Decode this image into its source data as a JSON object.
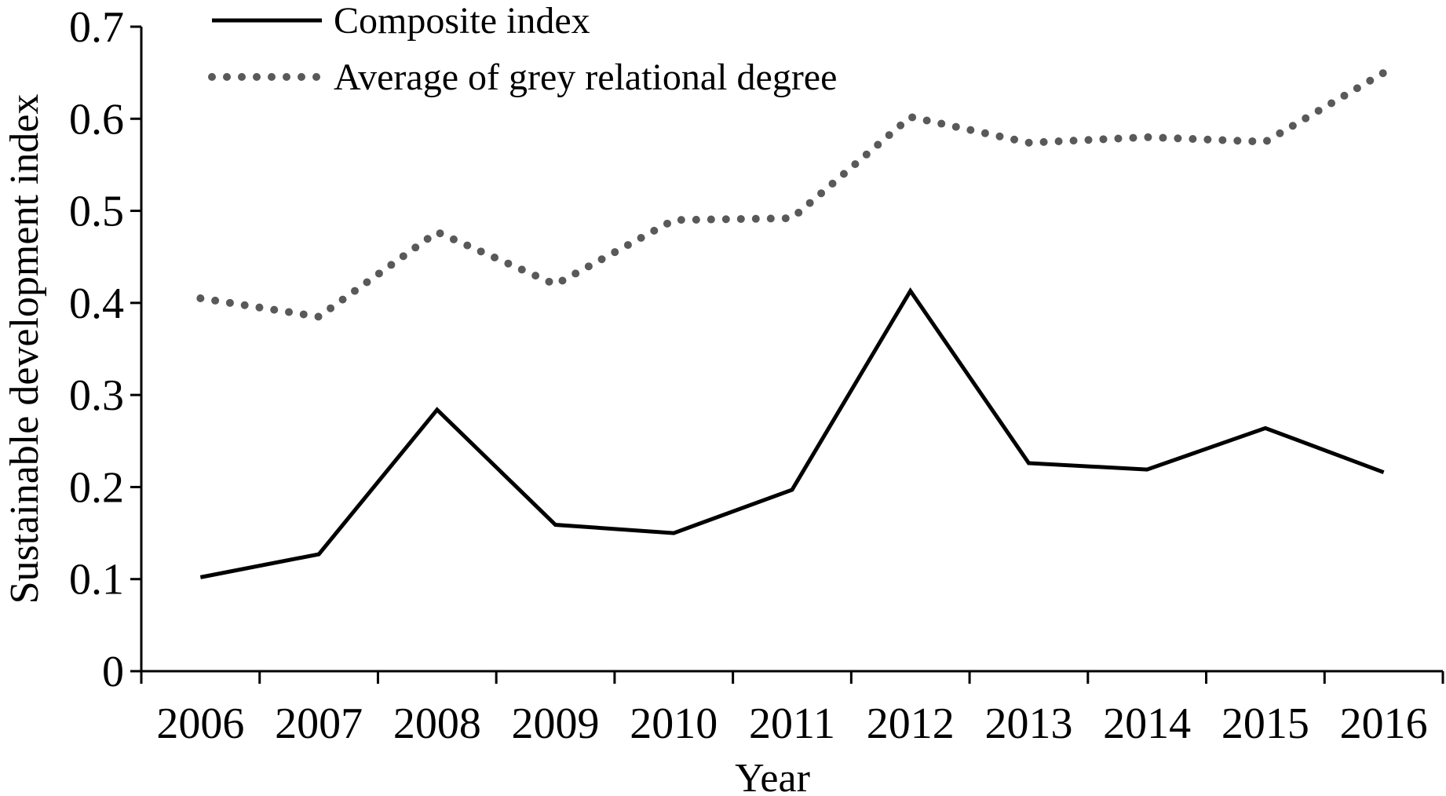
{
  "chart_data": {
    "type": "line",
    "title": "",
    "xlabel": "Year",
    "ylabel": "Sustainable development index",
    "categories": [
      "2006",
      "2007",
      "2008",
      "2009",
      "2010",
      "2011",
      "2012",
      "2013",
      "2014",
      "2015",
      "2016"
    ],
    "ylim": [
      0,
      0.7
    ],
    "yticks": [
      "0",
      "0.1",
      "0.2",
      "0.3",
      "0.4",
      "0.5",
      "0.6",
      "0.7"
    ],
    "grid": false,
    "legend_position": "top-center",
    "series": [
      {
        "name": "Composite index",
        "style": "solid",
        "color": "#000000",
        "values": [
          0.102,
          0.127,
          0.284,
          0.159,
          0.15,
          0.197,
          0.413,
          0.226,
          0.219,
          0.264,
          0.216
        ]
      },
      {
        "name": "Average of grey relational degree",
        "style": "dotted",
        "color": "#595959",
        "values": [
          0.405,
          0.385,
          0.477,
          0.42,
          0.49,
          0.492,
          0.602,
          0.574,
          0.58,
          0.575,
          0.65
        ]
      }
    ]
  }
}
